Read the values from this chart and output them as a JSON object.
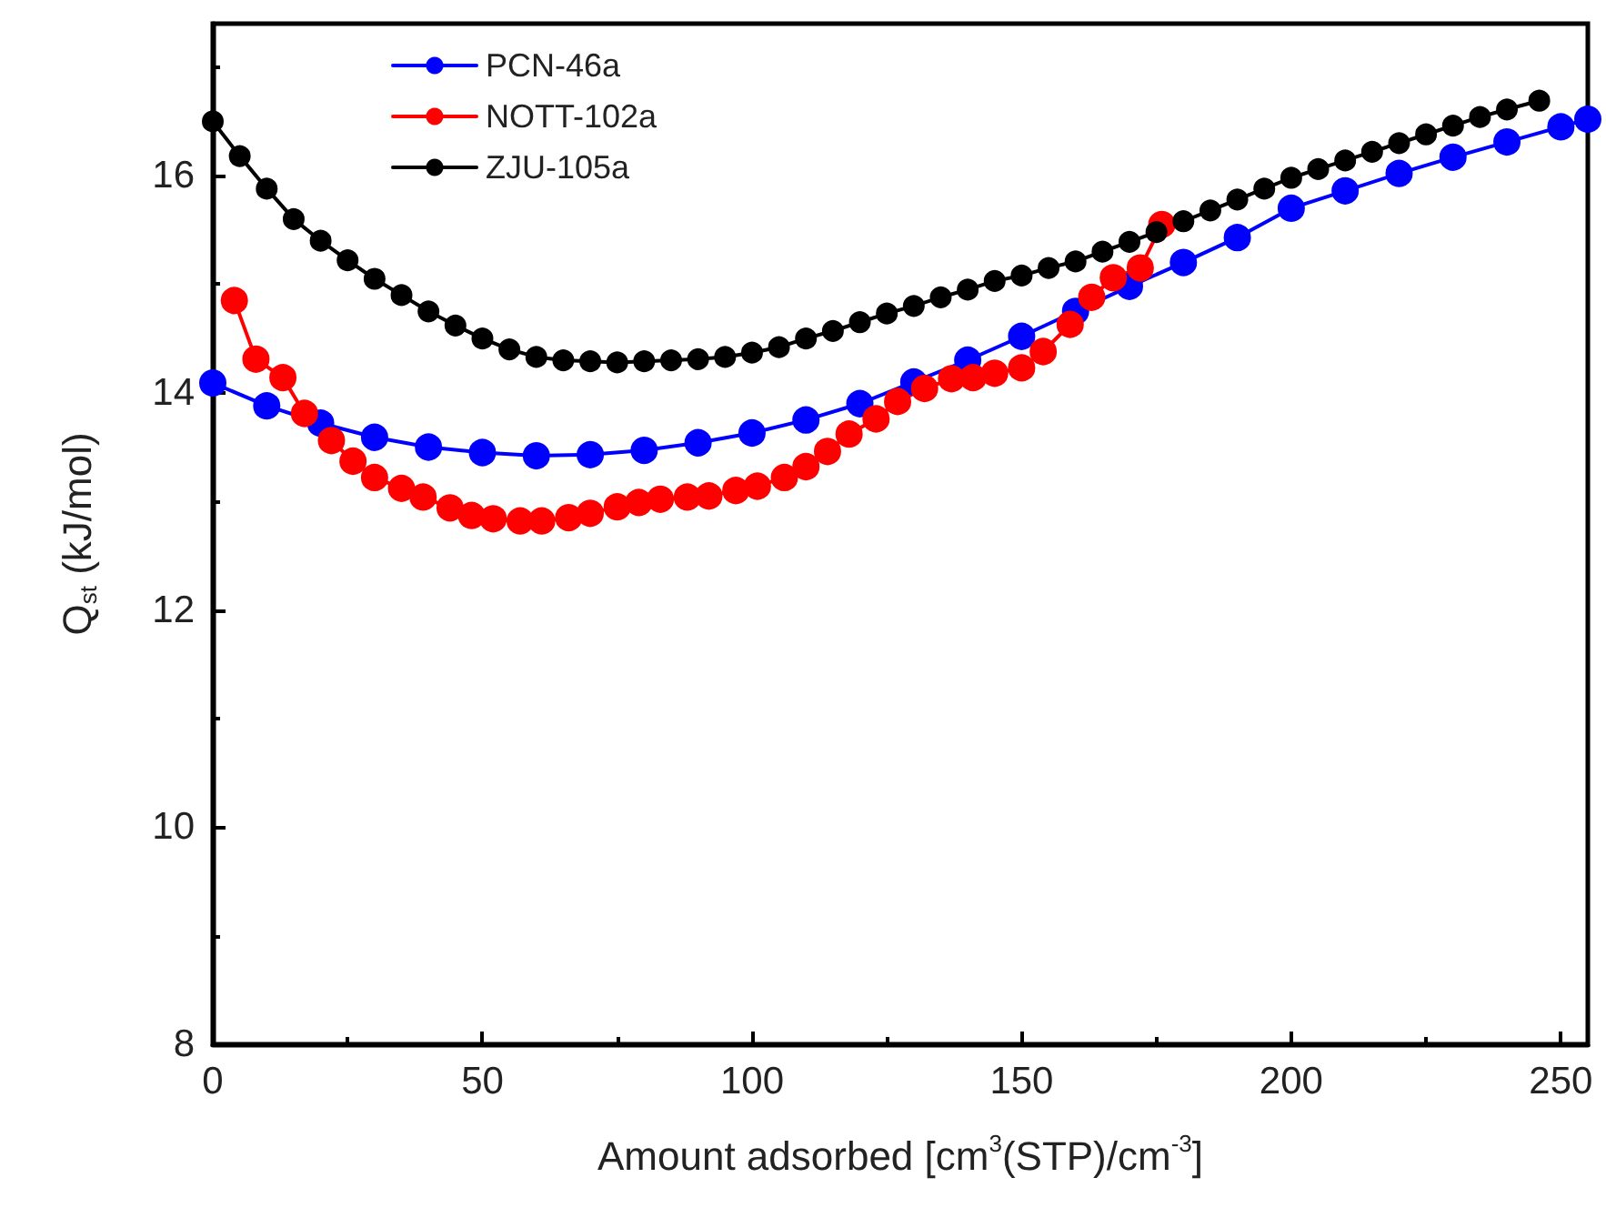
{
  "chart_data": {
    "type": "line",
    "xlabel": "Amount adsorbed [cm$^{3}$(STP)/cm$^{-3}$]",
    "ylabel": "Q$_{st}$ (kJ/mol)",
    "xlim": [
      0,
      255
    ],
    "xticks": [
      0,
      50,
      100,
      150,
      200,
      250
    ],
    "ylim": [
      8,
      17.4
    ],
    "yticks": [
      8,
      10,
      12,
      14,
      16
    ],
    "grid": false,
    "legend": "top left",
    "marker": "circle",
    "line_style": "solid",
    "series": [
      {
        "name": "PCN-46a",
        "color": "#0000ff",
        "x": [
          0,
          10,
          20,
          30,
          40,
          50,
          60,
          70,
          80,
          90,
          100,
          110,
          120,
          130,
          140,
          150,
          160,
          170,
          180,
          190,
          200,
          210,
          220,
          230,
          240,
          250,
          255
        ],
        "values": [
          14.09,
          13.88,
          13.72,
          13.59,
          13.5,
          13.45,
          13.42,
          13.43,
          13.47,
          13.54,
          13.63,
          13.75,
          13.9,
          14.1,
          14.3,
          14.52,
          14.75,
          14.98,
          15.2,
          15.43,
          15.7,
          15.86,
          16.02,
          16.17,
          16.31,
          16.45,
          16.52
        ]
      },
      {
        "name": "NOTT-102a",
        "color": "#ff0000",
        "x": [
          4,
          8,
          13,
          17,
          22,
          26,
          30,
          35,
          39,
          44,
          48,
          52,
          57,
          61,
          66,
          70,
          75,
          79,
          83,
          88,
          92,
          97,
          101,
          106,
          110,
          114,
          118,
          123,
          127,
          132,
          137,
          141,
          145,
          150,
          154,
          159,
          163,
          167,
          172,
          176
        ],
        "values": [
          14.85,
          14.31,
          14.14,
          13.81,
          13.56,
          13.37,
          13.22,
          13.12,
          13.04,
          12.94,
          12.87,
          12.84,
          12.82,
          12.82,
          12.85,
          12.89,
          12.95,
          12.99,
          13.02,
          13.04,
          13.05,
          13.1,
          13.14,
          13.22,
          13.32,
          13.46,
          13.62,
          13.76,
          13.92,
          14.04,
          14.13,
          14.14,
          14.18,
          14.23,
          14.38,
          14.63,
          14.88,
          15.06,
          15.15,
          15.55
        ]
      },
      {
        "name": "ZJU-105a",
        "color": "#000000",
        "x": [
          0,
          5,
          10,
          15,
          20,
          25,
          30,
          35,
          40,
          45,
          50,
          55,
          60,
          65,
          70,
          75,
          80,
          85,
          90,
          95,
          100,
          105,
          110,
          115,
          120,
          125,
          130,
          135,
          140,
          145,
          150,
          155,
          160,
          165,
          170,
          175,
          180,
          185,
          190,
          195,
          200,
          205,
          210,
          215,
          220,
          225,
          230,
          235,
          240,
          246
        ],
        "values": [
          16.5,
          16.18,
          15.88,
          15.6,
          15.4,
          15.22,
          15.05,
          14.9,
          14.75,
          14.62,
          14.5,
          14.4,
          14.33,
          14.3,
          14.29,
          14.28,
          14.29,
          14.3,
          14.31,
          14.33,
          14.37,
          14.42,
          14.5,
          14.57,
          14.65,
          14.73,
          14.8,
          14.88,
          14.95,
          15.03,
          15.08,
          15.15,
          15.21,
          15.3,
          15.39,
          15.48,
          15.58,
          15.68,
          15.78,
          15.88,
          15.98,
          16.06,
          16.14,
          16.22,
          16.3,
          16.38,
          16.46,
          16.54,
          16.61,
          16.69
        ]
      }
    ]
  }
}
